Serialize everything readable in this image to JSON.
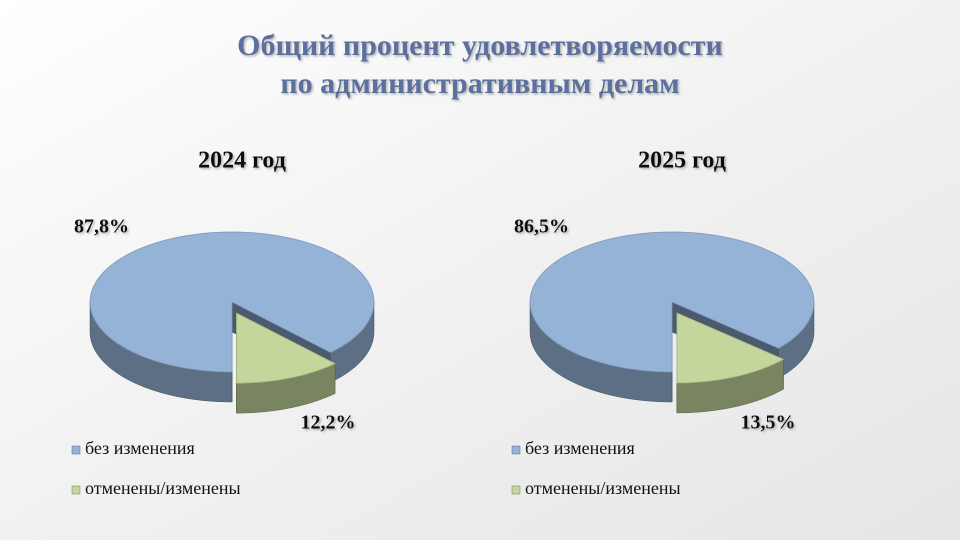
{
  "title": [
    "Общий процент удовлетворяемости",
    "по административным делам"
  ],
  "chart_data": [
    {
      "type": "pie3d",
      "title": "2024 год",
      "categories": [
        "без изменения",
        "отменены/изменены"
      ],
      "values": [
        87.8,
        12.2
      ],
      "value_labels": [
        "87,8%",
        "12,2%"
      ],
      "colors": [
        "#95b3d7",
        "#c3d69b"
      ]
    },
    {
      "type": "pie3d",
      "title": "2025 год",
      "categories": [
        "без изменения",
        "отменены/изменены"
      ],
      "values": [
        86.5,
        13.5
      ],
      "value_labels": [
        "86,5%",
        "13,5%"
      ],
      "colors": [
        "#95b3d7",
        "#c3d69b"
      ]
    }
  ]
}
